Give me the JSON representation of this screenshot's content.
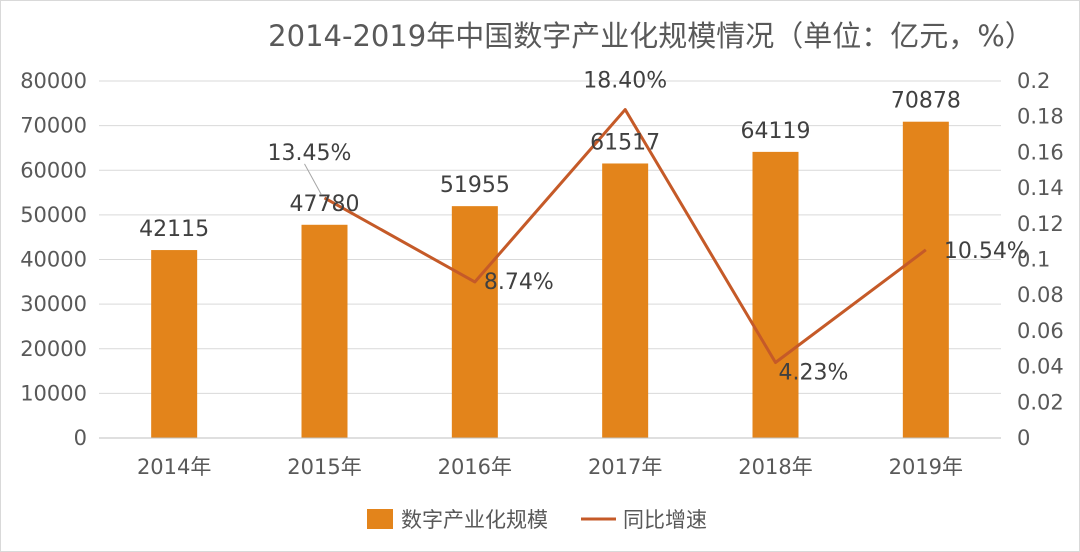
{
  "chart_data": {
    "type": "bar",
    "title": "2014-2019年中国数字产业化规模情况（单位：亿元，%）",
    "categories": [
      "2014年",
      "2015年",
      "2016年",
      "2017年",
      "2018年",
      "2019年"
    ],
    "series": [
      {
        "name": "数字产业化规模",
        "type": "bar",
        "axis": "left",
        "values": [
          42115,
          47780,
          51955,
          61517,
          64119,
          70878
        ],
        "labels": [
          "42115",
          "47780",
          "51955",
          "61517",
          "64119",
          "70878"
        ],
        "color": "#E3841B"
      },
      {
        "name": "同比增速",
        "type": "line",
        "axis": "right",
        "values": [
          null,
          0.1345,
          0.0874,
          0.184,
          0.0423,
          0.1054
        ],
        "labels": [
          "",
          "13.45%",
          "8.74%",
          "18.40%",
          "4.23%",
          "10.54%"
        ],
        "color": "#C55A28"
      }
    ],
    "y_left": {
      "range": [
        0,
        80000
      ],
      "ticks": [
        0,
        10000,
        20000,
        30000,
        40000,
        50000,
        60000,
        70000,
        80000
      ],
      "tick_labels": [
        "0",
        "10000",
        "20000",
        "30000",
        "40000",
        "50000",
        "60000",
        "70000",
        "80000"
      ]
    },
    "y_right": {
      "range": [
        0,
        0.2
      ],
      "ticks": [
        0,
        0.02,
        0.04,
        0.06,
        0.08,
        0.1,
        0.12,
        0.14,
        0.16,
        0.18,
        0.2
      ],
      "tick_labels": [
        "0",
        "0.02",
        "0.04",
        "0.06",
        "0.08",
        "0.1",
        "0.12",
        "0.14",
        "0.16",
        "0.18",
        "0.2"
      ]
    },
    "grid": true,
    "legend": "bottom-center"
  }
}
